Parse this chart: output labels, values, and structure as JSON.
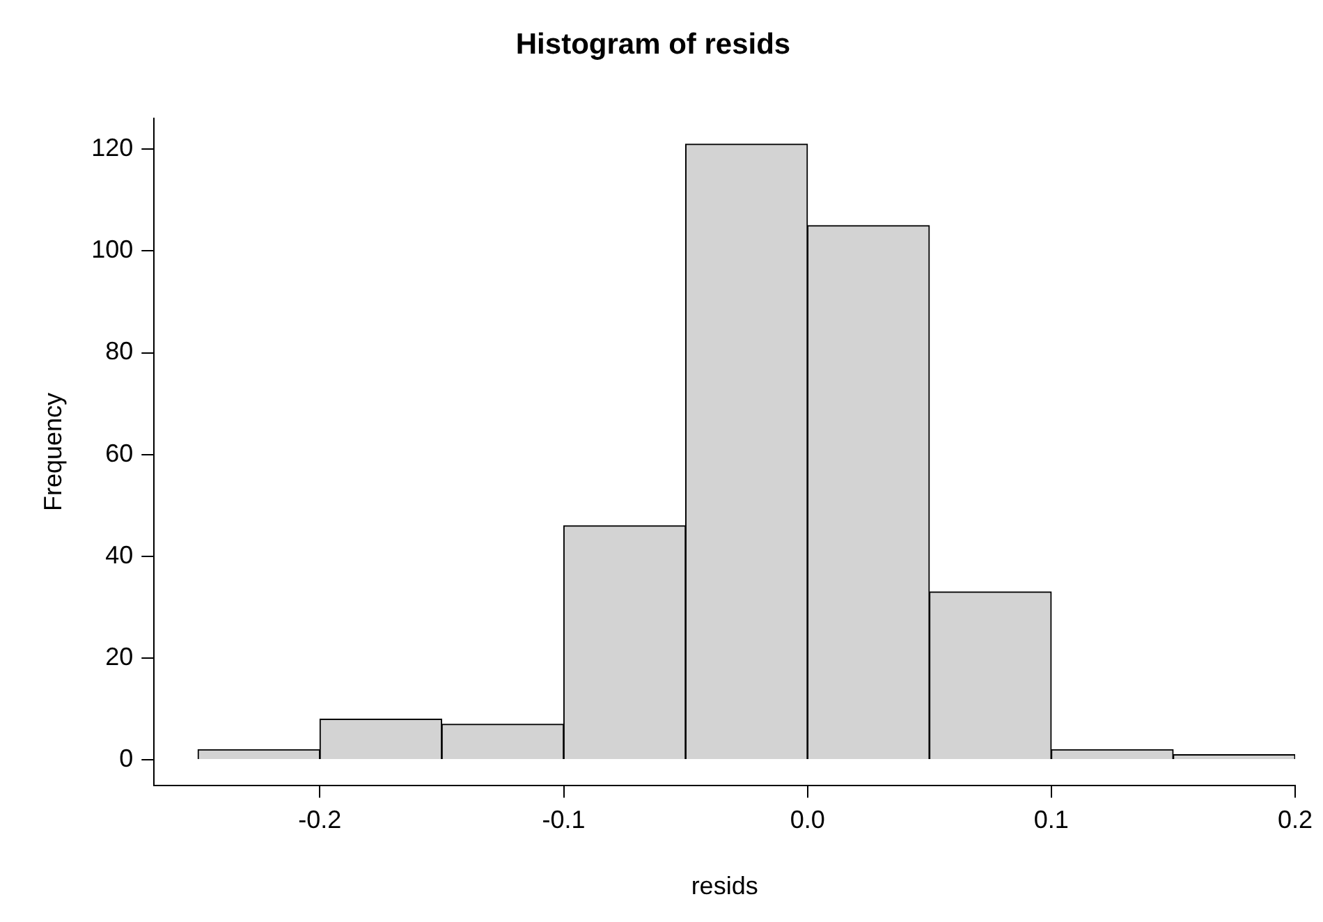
{
  "chart_data": {
    "type": "histogram",
    "title": "Histogram of resids",
    "xlabel": "resids",
    "ylabel": "Frequency",
    "bins": [
      -0.25,
      -0.2,
      -0.15,
      -0.1,
      -0.05,
      0,
      0.05,
      0.1,
      0.15,
      0.2
    ],
    "values": [
      2,
      8,
      7,
      46,
      121,
      105,
      33,
      2,
      1
    ],
    "color": "#d3d3d3",
    "xlim": [
      -0.268,
      0.2
    ],
    "ylim": [
      -5,
      126
    ],
    "xticks": [
      -0.2,
      -0.1,
      {
        "value": 0,
        "label": "0.0"
      },
      0.1,
      0.2
    ],
    "yticks": [
      0,
      20,
      40,
      60,
      80,
      100,
      120
    ],
    "grid": false,
    "legend": false
  }
}
